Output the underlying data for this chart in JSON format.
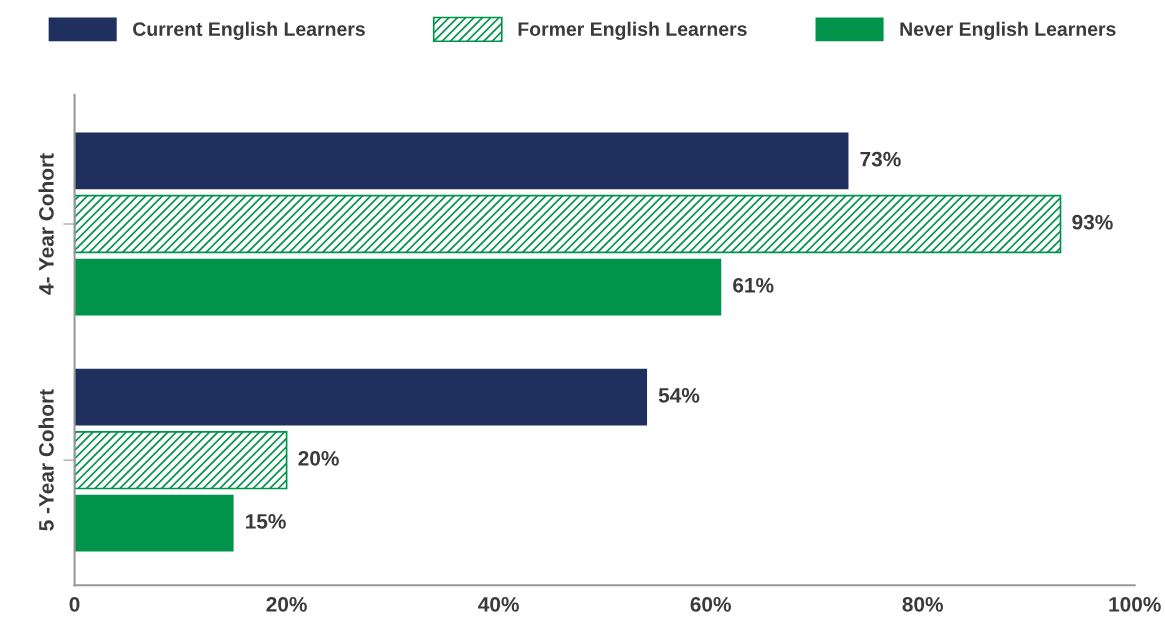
{
  "chart_data": {
    "type": "bar",
    "orientation": "horizontal",
    "categories": [
      "4- Year Cohort",
      "5 -Year Cohort"
    ],
    "series": [
      {
        "name": "Current English Learners",
        "color": "#1f2f5e",
        "values": [
          73,
          54
        ],
        "value_labels": [
          "73%",
          "54%"
        ]
      },
      {
        "name": "Former English Learners",
        "color": "#00934a",
        "values": [
          93,
          20
        ],
        "value_labels": [
          "93%",
          "20%"
        ]
      },
      {
        "name": "Never English Learners",
        "color": "#00934a",
        "values": [
          61,
          15
        ],
        "value_labels": [
          "61%",
          "15%"
        ]
      }
    ],
    "xlim": [
      0,
      100
    ],
    "xticks": [
      0,
      {
        "value": 20,
        "label": "20%"
      },
      {
        "value": 40,
        "label": "40%"
      },
      {
        "value": 60,
        "label": "60%"
      },
      {
        "value": 80,
        "label": "80%"
      },
      {
        "value": 100,
        "label": "100%"
      }
    ],
    "data_labels": true,
    "legend": "top",
    "grid": false
  }
}
